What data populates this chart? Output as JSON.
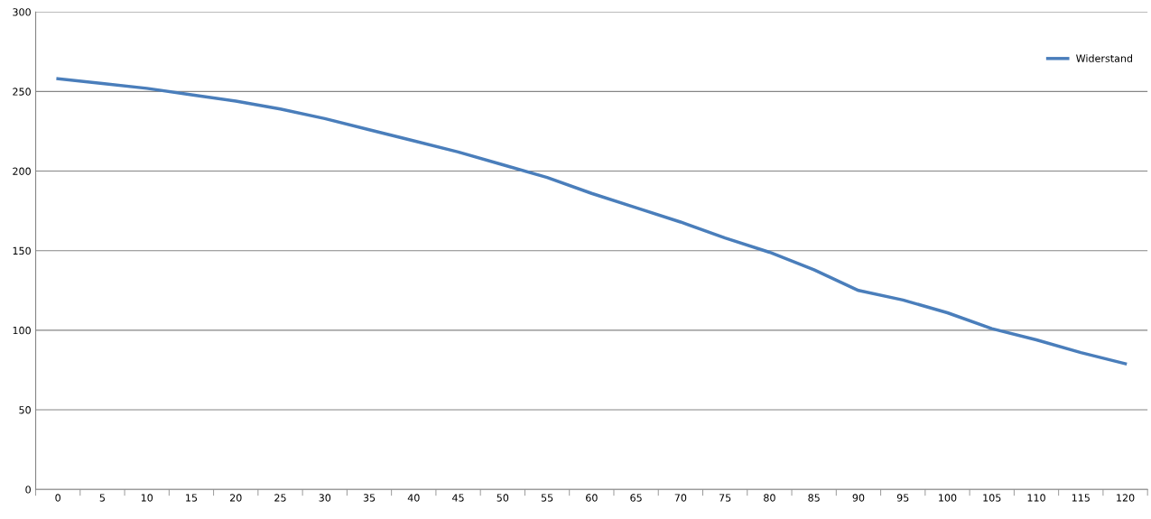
{
  "chart_data": {
    "type": "line",
    "categories": [
      "0",
      "5",
      "10",
      "15",
      "20",
      "25",
      "30",
      "35",
      "40",
      "45",
      "50",
      "55",
      "60",
      "65",
      "70",
      "75",
      "80",
      "85",
      "90",
      "95",
      "100",
      "105",
      "110",
      "115",
      "120"
    ],
    "series": [
      {
        "name": "Widerstand",
        "color": "#4a7ebb",
        "values": [
          258,
          255,
          252,
          248,
          244,
          239,
          233,
          226,
          219,
          212,
          204,
          196,
          186,
          177,
          168,
          158,
          149,
          138,
          125,
          119,
          111,
          101,
          94,
          86,
          79
        ]
      }
    ],
    "ylim": [
      0,
      300
    ],
    "yticks": [
      0,
      50,
      100,
      150,
      200,
      250,
      300
    ],
    "grid": "y",
    "legend": "top right",
    "marker": "none",
    "line_style": "solid"
  }
}
